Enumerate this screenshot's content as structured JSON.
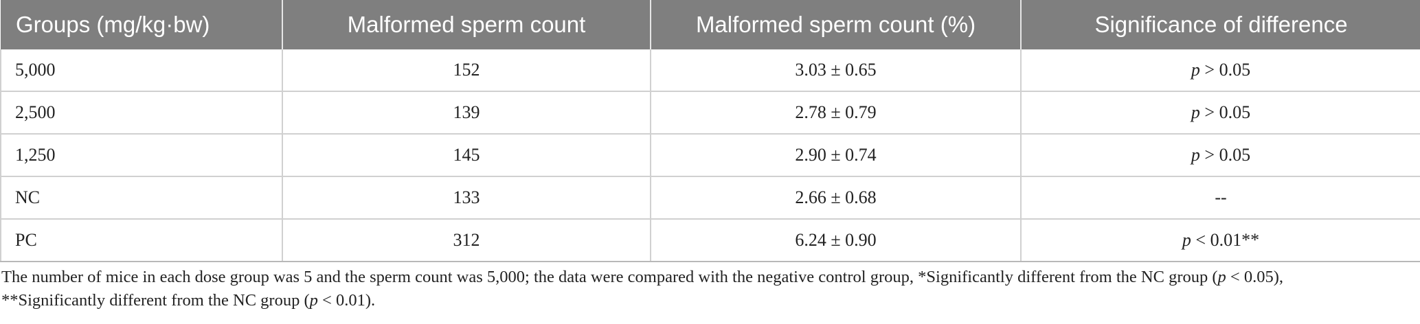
{
  "table": {
    "headers": [
      "Groups (mg/kg·bw)",
      "Malformed sperm count",
      "Malformed sperm count (%)",
      "Significance of difference"
    ],
    "rows": [
      {
        "group": "5,000",
        "count": "152",
        "percent": "3.03 ± 0.65",
        "sig_p": "p",
        "sig_rest": " > 0.05"
      },
      {
        "group": "2,500",
        "count": "139",
        "percent": "2.78 ± 0.79",
        "sig_p": "p",
        "sig_rest": " > 0.05"
      },
      {
        "group": "1,250",
        "count": "145",
        "percent": "2.90 ± 0.74",
        "sig_p": "p",
        "sig_rest": " > 0.05"
      },
      {
        "group": "NC",
        "count": "133",
        "percent": "2.66 ± 0.68",
        "sig_p": "",
        "sig_rest": "--"
      },
      {
        "group": "PC",
        "count": "312",
        "percent": "6.24 ± 0.90",
        "sig_p": "p",
        "sig_rest": " < 0.01**"
      }
    ]
  },
  "footnote": {
    "part1": "The number of mice in each dose group was 5 and the sperm count was 5,000; the data were compared with the negative control group, *Significantly different from the NC group (",
    "p1": "p",
    "part2": " < 0.05),",
    "part3": "**Significantly different from the NC group (",
    "p2": "p",
    "part4": " < 0.01)."
  }
}
